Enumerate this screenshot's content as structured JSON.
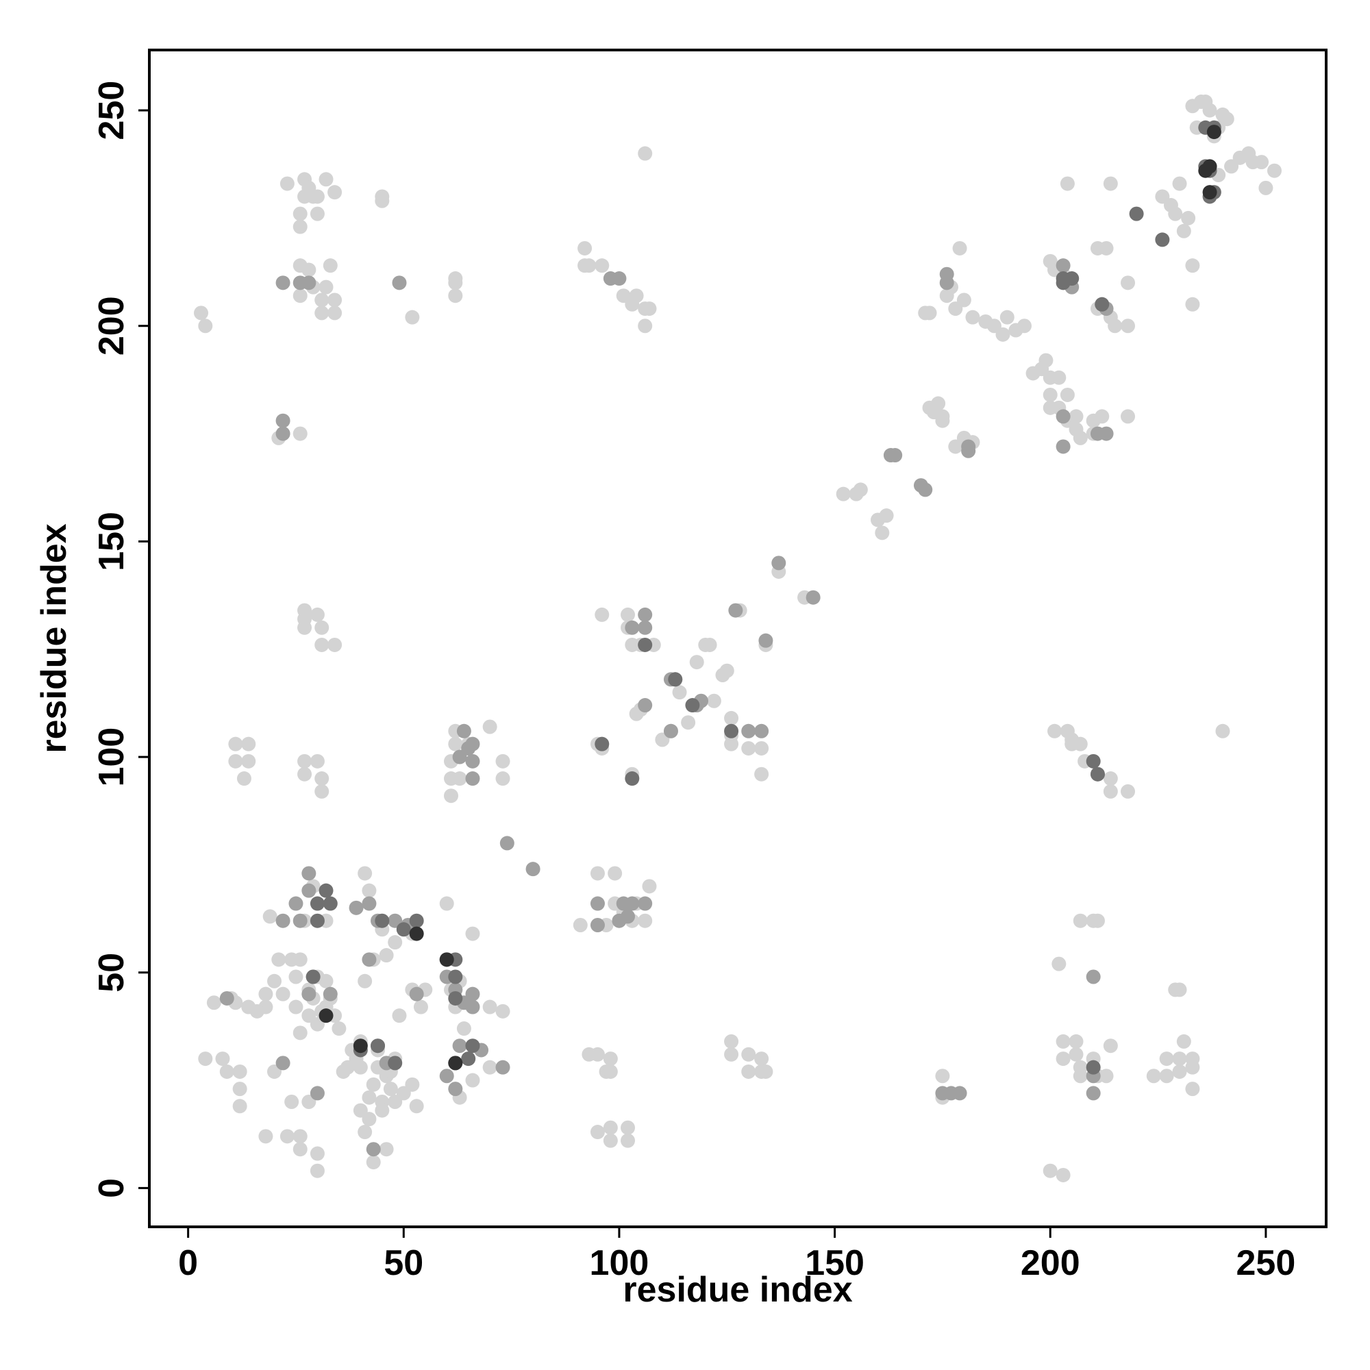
{
  "chart_data": {
    "type": "scatter",
    "x_label": "residue index",
    "y_label": "residue index",
    "xlim": [
      -9,
      264
    ],
    "ylim": [
      -9,
      264
    ],
    "xticks": [
      0,
      50,
      100,
      150,
      200,
      250
    ],
    "yticks": [
      0,
      50,
      100,
      150,
      200,
      250
    ],
    "series": [
      {
        "color": "#d3d3d3",
        "x": [
          4,
          8,
          9,
          12,
          12,
          12,
          18,
          23,
          26,
          26,
          30,
          30,
          24,
          20,
          11,
          6,
          14,
          18,
          18,
          20,
          21,
          24,
          26,
          22,
          25,
          28,
          30,
          32,
          34,
          28,
          30,
          27,
          29,
          32,
          32,
          37,
          38,
          40,
          40,
          40,
          42,
          42,
          43,
          45,
          44,
          46,
          47,
          48,
          48,
          50,
          52,
          53,
          41,
          43,
          46,
          52,
          55,
          54,
          49,
          41,
          43,
          46,
          45,
          48,
          52,
          41,
          42,
          60,
          61,
          62,
          63,
          64,
          65,
          66,
          70,
          70,
          73,
          63,
          66,
          19,
          28,
          10,
          16,
          25,
          26,
          29,
          31,
          33,
          35,
          36,
          39,
          44,
          45,
          47,
          3,
          4,
          23,
          27,
          27,
          26,
          26,
          28,
          29,
          30,
          30,
          32,
          34,
          26,
          26,
          28,
          29,
          31,
          31,
          32,
          33,
          34,
          34,
          45,
          45,
          52,
          62,
          62,
          62,
          21,
          26,
          27,
          27,
          30,
          27,
          31,
          31,
          34,
          11,
          14,
          11,
          14,
          13,
          27,
          27,
          30,
          31,
          31,
          62,
          62,
          61,
          61,
          63,
          61,
          65,
          70,
          73,
          73,
          92,
          92,
          96,
          101,
          103,
          104,
          106,
          107,
          106,
          106,
          91,
          95,
          99,
          97,
          99,
          101,
          103,
          106,
          107,
          104,
          95,
          96,
          103,
          96,
          102,
          102,
          103,
          105,
          108,
          104,
          105,
          110,
          112,
          114,
          118,
          116,
          120,
          121,
          124,
          125,
          122,
          126,
          126,
          126,
          130,
          133,
          133,
          128,
          134,
          137,
          143,
          152,
          155,
          156,
          160,
          162,
          161,
          173,
          175,
          174,
          178,
          180,
          182,
          176,
          172,
          178,
          179,
          177,
          180,
          182,
          185,
          187,
          189,
          190,
          192,
          194,
          196,
          198,
          200,
          200,
          202,
          204,
          206,
          207,
          210,
          210,
          212,
          218,
          200,
          201,
          203,
          204,
          211,
          213,
          211,
          214,
          215,
          218,
          218,
          226,
          228,
          229,
          232,
          231,
          233,
          233,
          214,
          230,
          239,
          234,
          236,
          237,
          238,
          240,
          241,
          233,
          235,
          239,
          242,
          244,
          246,
          247,
          249,
          250,
          252,
          97,
          95,
          98,
          98,
          93,
          95,
          98,
          98,
          102,
          102,
          126,
          126,
          130,
          130,
          133,
          133,
          134,
          175,
          175,
          200,
          203,
          202,
          201,
          204,
          205,
          205,
          208,
          207,
          214,
          214,
          218,
          240,
          207,
          210,
          211,
          203,
          206,
          206,
          207,
          207,
          210,
          213,
          214,
          211,
          203,
          224,
          227,
          227,
          229,
          230,
          230,
          231,
          233,
          233,
          230,
          233,
          200,
          199,
          202,
          204,
          206,
          171,
          172,
          93,
          175
        ],
        "values": [
          30,
          30,
          27,
          27,
          23,
          19,
          12,
          12,
          12,
          9,
          8,
          4,
          20,
          27,
          43,
          43,
          42,
          42,
          45,
          48,
          53,
          53,
          53,
          45,
          42,
          40,
          38,
          42,
          40,
          46,
          49,
          62,
          70,
          62,
          48,
          28,
          32,
          34,
          28,
          18,
          16,
          21,
          24,
          20,
          28,
          26,
          23,
          30,
          20,
          22,
          24,
          19,
          13,
          6,
          9,
          46,
          46,
          42,
          40,
          48,
          53,
          54,
          60,
          57,
          59,
          73,
          69,
          66,
          46,
          42,
          48,
          37,
          30,
          25,
          28,
          42,
          41,
          21,
          59,
          63,
          20,
          44,
          41,
          49,
          36,
          44,
          41,
          44,
          37,
          27,
          30,
          32,
          18,
          27,
          203,
          200,
          233,
          234,
          230,
          226,
          223,
          232,
          230,
          226,
          230,
          234,
          231,
          214,
          207,
          213,
          209,
          206,
          203,
          209,
          214,
          206,
          203,
          229,
          230,
          202,
          210,
          207,
          211,
          174,
          175,
          134,
          132,
          133,
          130,
          130,
          126,
          126,
          103,
          103,
          99,
          99,
          95,
          99,
          96,
          99,
          95,
          92,
          106,
          103,
          99,
          95,
          95,
          91,
          103,
          107,
          99,
          95,
          218,
          214,
          214,
          207,
          205,
          207,
          204,
          204,
          200,
          240,
          61,
          73,
          73,
          61,
          66,
          64,
          62,
          62,
          70,
          66,
          103,
          102,
          96,
          133,
          133,
          130,
          126,
          126,
          126,
          110,
          111,
          104,
          106,
          115,
          122,
          108,
          126,
          126,
          119,
          120,
          113,
          109,
          105,
          103,
          102,
          102,
          96,
          134,
          126,
          143,
          137,
          161,
          161,
          162,
          155,
          156,
          152,
          180,
          179,
          182,
          172,
          174,
          173,
          207,
          203,
          204,
          218,
          209,
          206,
          202,
          201,
          200,
          198,
          202,
          199,
          200,
          189,
          190,
          188,
          184,
          181,
          178,
          176,
          174,
          175,
          178,
          179,
          179,
          215,
          213,
          212,
          233,
          218,
          218,
          204,
          202,
          200,
          210,
          200,
          230,
          228,
          226,
          225,
          222,
          214,
          205,
          233,
          233,
          246,
          246,
          252,
          250,
          244,
          249,
          248,
          251,
          252,
          235,
          237,
          239,
          240,
          238,
          238,
          232,
          236,
          27,
          31,
          27,
          30,
          31,
          13,
          14,
          11,
          11,
          14,
          34,
          31,
          31,
          27,
          27,
          30,
          27,
          26,
          21,
          4,
          3,
          52,
          106,
          106,
          104,
          103,
          99,
          103,
          95,
          92,
          92,
          106,
          62,
          62,
          62,
          34,
          34,
          31,
          28,
          26,
          30,
          26,
          33,
          26,
          30,
          26,
          26,
          30,
          46,
          46,
          30,
          34,
          30,
          28,
          27,
          23,
          181,
          192,
          188,
          184,
          179,
          203,
          181,
          214,
          178
        ]
      },
      {
        "color": "#a0a0a0",
        "x": [
          22,
          22,
          25,
          28,
          28,
          26,
          29,
          33,
          30,
          39,
          42,
          44,
          48,
          51,
          53,
          60,
          62,
          64,
          66,
          66,
          68,
          63,
          60,
          73,
          42,
          44,
          46,
          62,
          9,
          43,
          28,
          22,
          26,
          28,
          49,
          22,
          22,
          64,
          65,
          66,
          66,
          63,
          66,
          74,
          80,
          98,
          100,
          95,
          95,
          100,
          101,
          106,
          102,
          103,
          106,
          106,
          103,
          106,
          112,
          112,
          113,
          118,
          119,
          127,
          130,
          133,
          134,
          137,
          145,
          163,
          164,
          170,
          171,
          176,
          176,
          181,
          181,
          203,
          205,
          212,
          213,
          203,
          203,
          211,
          213,
          211,
          177,
          175,
          179,
          210,
          210,
          210
        ],
        "values": [
          29,
          62,
          66,
          73,
          69,
          62,
          49,
          45,
          22,
          65,
          66,
          62,
          62,
          61,
          45,
          49,
          46,
          43,
          42,
          45,
          32,
          33,
          26,
          28,
          53,
          33,
          29,
          23,
          44,
          9,
          45,
          210,
          210,
          210,
          210,
          175,
          178,
          106,
          102,
          99,
          95,
          100,
          103,
          80,
          74,
          211,
          211,
          66,
          61,
          62,
          66,
          66,
          63,
          66,
          133,
          130,
          130,
          112,
          106,
          118,
          118,
          112,
          113,
          134,
          106,
          106,
          127,
          145,
          137,
          170,
          170,
          163,
          162,
          212,
          210,
          172,
          171,
          214,
          209,
          205,
          204,
          172,
          179,
          175,
          175,
          96,
          22,
          22,
          22,
          49,
          22,
          26
        ]
      },
      {
        "color": "#707070",
        "x": [
          30,
          32,
          33,
          30,
          29,
          45,
          50,
          53,
          60,
          62,
          62,
          62,
          62,
          65,
          66,
          40,
          48,
          44,
          106,
          126,
          103,
          96,
          117,
          113,
          203,
          205,
          212,
          210,
          211,
          210,
          220,
          226,
          236,
          237,
          237,
          238,
          236,
          238,
          203
        ],
        "values": [
          66,
          69,
          66,
          62,
          49,
          62,
          60,
          62,
          53,
          53,
          49,
          44,
          29,
          30,
          33,
          32,
          29,
          33,
          126,
          106,
          95,
          103,
          112,
          118,
          210,
          211,
          205,
          99,
          96,
          28,
          226,
          220,
          237,
          236,
          230,
          231,
          246,
          246,
          211
        ]
      },
      {
        "color": "#303030",
        "x": [
          32,
          53,
          60,
          62,
          40,
          236,
          237,
          238,
          237
        ],
        "values": [
          40,
          59,
          53,
          29,
          33,
          236,
          231,
          245,
          237
        ]
      }
    ]
  }
}
